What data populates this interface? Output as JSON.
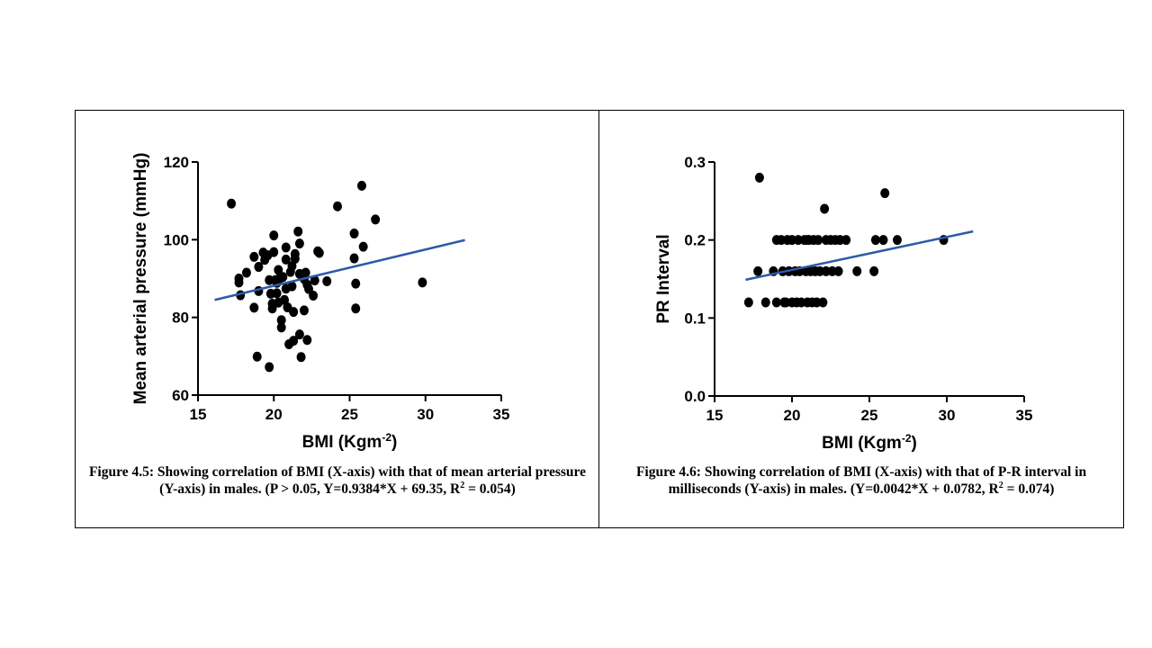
{
  "chart_data": [
    {
      "type": "scatter",
      "xlabel": "BMI (Kgm",
      "xlabel_sup": "-2",
      "xlabel_close": ")",
      "ylabel": "Mean arterial pressure (mmHg)",
      "xlim": [
        15,
        35
      ],
      "ylim": [
        60,
        120
      ],
      "xticks": [
        15,
        20,
        25,
        30,
        35
      ],
      "yticks": [
        60,
        80,
        100,
        120
      ],
      "xtick_labels": [
        "15",
        "20",
        "25",
        "30",
        "35"
      ],
      "ytick_labels": [
        "60",
        "80",
        "100",
        "120"
      ],
      "grid": false,
      "point_color": "#000000",
      "line_color": "#2e5aa8",
      "fit_line": {
        "x": [
          16.1,
          32.6
        ],
        "y": [
          84.5,
          99.9
        ]
      },
      "points": [
        [
          17.2,
          109.3
        ],
        [
          17.7,
          90.0
        ],
        [
          17.7,
          89.0
        ],
        [
          17.8,
          85.7
        ],
        [
          18.2,
          91.5
        ],
        [
          18.7,
          95.6
        ],
        [
          18.7,
          82.5
        ],
        [
          19.0,
          93.0
        ],
        [
          19.0,
          86.8
        ],
        [
          18.9,
          69.9
        ],
        [
          19.3,
          96.7
        ],
        [
          19.4,
          94.8
        ],
        [
          19.6,
          96.0
        ],
        [
          19.7,
          89.6
        ],
        [
          19.8,
          86.1
        ],
        [
          19.7,
          67.2
        ],
        [
          19.9,
          83.5
        ],
        [
          19.9,
          82.3
        ],
        [
          20.0,
          101.1
        ],
        [
          20.0,
          96.8
        ],
        [
          20.1,
          89.6
        ],
        [
          20.2,
          88.9
        ],
        [
          20.2,
          86.2
        ],
        [
          20.3,
          92.2
        ],
        [
          20.3,
          83.8
        ],
        [
          20.4,
          90.1
        ],
        [
          20.5,
          79.3
        ],
        [
          20.5,
          77.4
        ],
        [
          20.6,
          90.4
        ],
        [
          20.7,
          84.5
        ],
        [
          20.8,
          98.0
        ],
        [
          20.8,
          94.9
        ],
        [
          20.8,
          87.4
        ],
        [
          20.9,
          82.6
        ],
        [
          21.0,
          73.1
        ],
        [
          21.1,
          91.7
        ],
        [
          21.2,
          93.2
        ],
        [
          21.2,
          88.0
        ],
        [
          21.3,
          81.4
        ],
        [
          21.3,
          74.0
        ],
        [
          21.4,
          96.3
        ],
        [
          21.4,
          95.1
        ],
        [
          21.6,
          102.1
        ],
        [
          21.7,
          99.0
        ],
        [
          21.7,
          91.2
        ],
        [
          21.7,
          75.6
        ],
        [
          21.8,
          69.8
        ],
        [
          22.0,
          89.9
        ],
        [
          22.0,
          81.8
        ],
        [
          22.1,
          91.5
        ],
        [
          22.2,
          88.4
        ],
        [
          22.3,
          87.3
        ],
        [
          22.2,
          74.2
        ],
        [
          22.6,
          85.6
        ],
        [
          22.7,
          89.5
        ],
        [
          22.9,
          97.0
        ],
        [
          23.0,
          96.6
        ],
        [
          23.5,
          89.3
        ],
        [
          24.2,
          108.6
        ],
        [
          25.3,
          101.6
        ],
        [
          25.3,
          95.2
        ],
        [
          25.4,
          88.7
        ],
        [
          25.4,
          82.3
        ],
        [
          25.8,
          113.9
        ],
        [
          25.9,
          98.2
        ],
        [
          26.7,
          105.2
        ],
        [
          29.8,
          89.0
        ]
      ]
    },
    {
      "type": "scatter",
      "xlabel": "BMI (Kgm",
      "xlabel_sup": "-2",
      "xlabel_close": ")",
      "ylabel": "PR Interval",
      "xlim": [
        15,
        35
      ],
      "ylim": [
        0.0,
        0.3
      ],
      "xticks": [
        15,
        20,
        25,
        30,
        35
      ],
      "yticks": [
        0.0,
        0.1,
        0.2,
        0.3
      ],
      "xtick_labels": [
        "15",
        "20",
        "25",
        "30",
        "35"
      ],
      "ytick_labels": [
        "0.0",
        "0.1",
        "0.2",
        "0.3"
      ],
      "grid": false,
      "point_color": "#000000",
      "line_color": "#2e5aa8",
      "fit_line": {
        "x": [
          17.0,
          31.7
        ],
        "y": [
          0.149,
          0.211
        ]
      },
      "points": [
        [
          17.2,
          0.12
        ],
        [
          17.9,
          0.28
        ],
        [
          17.8,
          0.16
        ],
        [
          18.3,
          0.12
        ],
        [
          18.8,
          0.16
        ],
        [
          19.0,
          0.12
        ],
        [
          19.0,
          0.2
        ],
        [
          19.3,
          0.2
        ],
        [
          19.4,
          0.16
        ],
        [
          19.5,
          0.12
        ],
        [
          19.6,
          0.12
        ],
        [
          19.7,
          0.2
        ],
        [
          19.8,
          0.16
        ],
        [
          20.0,
          0.12
        ],
        [
          20.0,
          0.2
        ],
        [
          20.2,
          0.16
        ],
        [
          20.3,
          0.12
        ],
        [
          20.4,
          0.2
        ],
        [
          20.5,
          0.16
        ],
        [
          20.6,
          0.12
        ],
        [
          20.8,
          0.2
        ],
        [
          20.9,
          0.16
        ],
        [
          21.0,
          0.12
        ],
        [
          21.0,
          0.2
        ],
        [
          21.1,
          0.2
        ],
        [
          21.2,
          0.16
        ],
        [
          21.3,
          0.12
        ],
        [
          21.4,
          0.2
        ],
        [
          21.5,
          0.16
        ],
        [
          21.6,
          0.12
        ],
        [
          21.7,
          0.2
        ],
        [
          21.8,
          0.16
        ],
        [
          22.0,
          0.12
        ],
        [
          22.1,
          0.24
        ],
        [
          22.2,
          0.2
        ],
        [
          22.2,
          0.16
        ],
        [
          22.5,
          0.2
        ],
        [
          22.6,
          0.16
        ],
        [
          22.8,
          0.2
        ],
        [
          23.0,
          0.16
        ],
        [
          23.1,
          0.2
        ],
        [
          23.5,
          0.2
        ],
        [
          24.2,
          0.16
        ],
        [
          25.3,
          0.16
        ],
        [
          25.4,
          0.2
        ],
        [
          25.9,
          0.2
        ],
        [
          26.0,
          0.26
        ],
        [
          26.8,
          0.2
        ],
        [
          29.8,
          0.2
        ]
      ]
    }
  ],
  "captions": [
    {
      "main": "Figure 4.5: Showing correlation of BMI (X-axis) with that of mean arterial pressure (Y-axis) in males. (P > 0.05, Y=0.9384*X + 69.35, R",
      "sup": "2",
      "tail": " = 0.054)"
    },
    {
      "main": "Figure 4.6: Showing correlation of BMI (X-axis) with that of P-R interval in milliseconds (Y-axis) in males. (Y=0.0042*X + 0.0782, R",
      "sup": "2",
      "tail": " = 0.074)"
    }
  ]
}
